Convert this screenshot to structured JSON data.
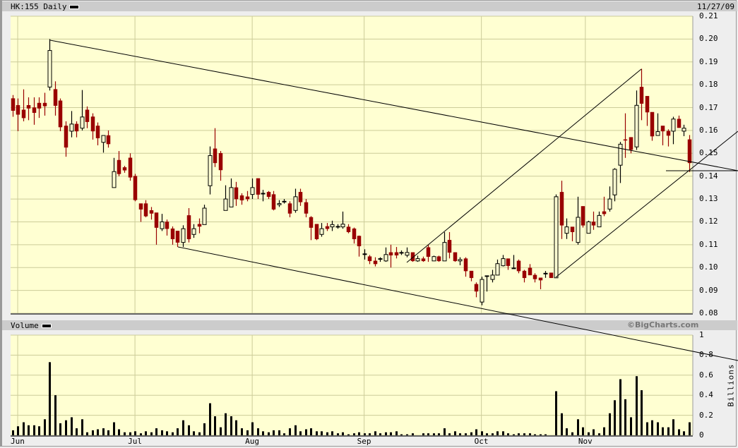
{
  "header": {
    "symbol_label": "HK:155 Daily",
    "date": "11/27/09"
  },
  "volume_header": {
    "label": "Volume",
    "credit": "©BigCharts.com"
  },
  "colors": {
    "plot_bg": "#ffffd2",
    "grid": "#cccc99",
    "down": "#990000",
    "up_fill": "#ffffd2",
    "line": "#000000"
  },
  "chart_data": [
    {
      "type": "candlestick",
      "title": "HK:155 Daily",
      "y_ticks": [
        "0.21",
        "0.20",
        "0.19",
        "0.18",
        "0.17",
        "0.16",
        "0.15",
        "0.14",
        "0.13",
        "0.12",
        "0.11",
        "0.10",
        "0.09",
        "0.08"
      ],
      "ylim": [
        0.08,
        0.21
      ],
      "x_ticks": [
        "Jun",
        "Jul",
        "Aug",
        "Sep",
        "Oct",
        "Nov"
      ],
      "grid": true,
      "ohlc": [
        [
          0.174,
          0.1755,
          0.166,
          0.1687
        ],
        [
          0.171,
          0.174,
          0.1597,
          0.167
        ],
        [
          0.169,
          0.178,
          0.164,
          0.1655
        ],
        [
          0.171,
          0.1745,
          0.1645,
          0.1697
        ],
        [
          0.17,
          0.1745,
          0.1625,
          0.1678
        ],
        [
          0.172,
          0.1745,
          0.1655,
          0.1697
        ],
        [
          0.172,
          0.1765,
          0.1665,
          0.1707
        ],
        [
          0.179,
          0.2,
          0.1775,
          0.195
        ],
        [
          0.178,
          0.1815,
          0.1665,
          0.1709
        ],
        [
          0.173,
          0.174,
          0.1597,
          0.1615
        ],
        [
          0.162,
          0.164,
          0.1485,
          0.1526
        ],
        [
          0.1597,
          0.1685,
          0.157,
          0.1628
        ],
        [
          0.1628,
          0.164,
          0.157,
          0.1597
        ],
        [
          0.161,
          0.1777,
          0.16,
          0.1659
        ],
        [
          0.169,
          0.1705,
          0.161,
          0.1638
        ],
        [
          0.166,
          0.1675,
          0.156,
          0.1597
        ],
        [
          0.162,
          0.1635,
          0.1535,
          0.1567
        ],
        [
          0.1548,
          0.1578,
          0.1503,
          0.1578
        ],
        [
          0.1578,
          0.16,
          0.1525,
          0.1541
        ],
        [
          0.135,
          0.148,
          0.135,
          0.142
        ],
        [
          0.147,
          0.151,
          0.14,
          0.141
        ],
        [
          0.1438,
          0.1445,
          0.1415,
          0.1426
        ],
        [
          0.148,
          0.15,
          0.138,
          0.1395
        ],
        [
          0.14,
          0.141,
          0.129,
          0.1296
        ],
        [
          0.128,
          0.128,
          0.12,
          0.1255
        ],
        [
          0.128,
          0.1295,
          0.122,
          0.1225
        ],
        [
          0.125,
          0.1265,
          0.121,
          0.1237
        ],
        [
          0.124,
          0.124,
          0.11,
          0.1175
        ],
        [
          0.117,
          0.1235,
          0.116,
          0.12
        ],
        [
          0.12,
          0.121,
          0.114,
          0.117
        ],
        [
          0.117,
          0.118,
          0.11,
          0.1125
        ],
        [
          0.116,
          0.116,
          0.109,
          0.111
        ],
        [
          0.111,
          0.1185,
          0.109,
          0.117
        ],
        [
          0.1228,
          0.126,
          0.111,
          0.1125
        ],
        [
          0.1145,
          0.119,
          0.113,
          0.117
        ],
        [
          0.119,
          0.1215,
          0.115,
          0.118
        ],
        [
          0.1188,
          0.1275,
          0.1188,
          0.126
        ],
        [
          0.1358,
          0.153,
          0.132,
          0.149
        ],
        [
          0.152,
          0.161,
          0.144,
          0.1458
        ],
        [
          0.15,
          0.151,
          0.138,
          0.1427
        ],
        [
          0.125,
          0.136,
          0.125,
          0.13
        ],
        [
          0.1265,
          0.139,
          0.1265,
          0.135
        ],
        [
          0.135,
          0.1375,
          0.127,
          0.13
        ],
        [
          0.1315,
          0.1325,
          0.1275,
          0.1295
        ],
        [
          0.131,
          0.1335,
          0.129,
          0.13
        ],
        [
          0.132,
          0.139,
          0.13,
          0.135
        ],
        [
          0.139,
          0.139,
          0.13,
          0.132
        ],
        [
          0.1325,
          0.134,
          0.129,
          0.1325
        ],
        [
          0.133,
          0.1335,
          0.13,
          0.131
        ],
        [
          0.132,
          0.1335,
          0.125,
          0.1255
        ],
        [
          0.1275,
          0.1295,
          0.1265,
          0.128
        ],
        [
          0.129,
          0.13,
          0.128,
          0.129
        ],
        [
          0.128,
          0.129,
          0.122,
          0.1237
        ],
        [
          0.125,
          0.1345,
          0.124,
          0.131
        ],
        [
          0.133,
          0.1345,
          0.127,
          0.1287
        ],
        [
          0.1285,
          0.13,
          0.122,
          0.1237
        ],
        [
          0.122,
          0.1225,
          0.112,
          0.1175
        ],
        [
          0.119,
          0.119,
          0.112,
          0.1125
        ],
        [
          0.1145,
          0.1195,
          0.1135,
          0.117
        ],
        [
          0.118,
          0.1195,
          0.116,
          0.117
        ],
        [
          0.1178,
          0.1205,
          0.116,
          0.1188
        ],
        [
          0.118,
          0.119,
          0.117,
          0.118
        ],
        [
          0.1178,
          0.1245,
          0.117,
          0.119
        ],
        [
          0.1178,
          0.119,
          0.115,
          0.1156
        ],
        [
          0.117,
          0.1175,
          0.1105,
          0.1125
        ],
        [
          0.1138,
          0.114,
          0.1048,
          0.1094
        ],
        [
          0.106,
          0.108,
          0.1035,
          0.106
        ],
        [
          0.1048,
          0.1055,
          0.1015,
          0.1029
        ],
        [
          0.1029,
          0.1045,
          0.1005,
          0.1016
        ],
        [
          0.1039,
          0.1045,
          0.1025,
          0.1039
        ],
        [
          0.1029,
          0.1088,
          0.1025,
          0.1057
        ],
        [
          0.1066,
          0.11,
          0.1,
          0.1054
        ],
        [
          0.1066,
          0.109,
          0.104,
          0.1054
        ],
        [
          0.1066,
          0.1075,
          0.1055,
          0.1066
        ],
        [
          0.1054,
          0.1088,
          0.1045,
          0.1066
        ],
        [
          0.1066,
          0.1066,
          0.1025,
          0.1029
        ],
        [
          0.1029,
          0.1052,
          0.1025,
          0.1039
        ],
        [
          0.1039,
          0.1048,
          0.1025,
          0.1029
        ],
        [
          0.1088,
          0.11,
          0.1025,
          0.1048
        ],
        [
          0.1029,
          0.1052,
          0.1029,
          0.1048
        ],
        [
          0.1048,
          0.1052,
          0.1025,
          0.1029
        ],
        [
          0.1029,
          0.1155,
          0.1029,
          0.111
        ],
        [
          0.112,
          0.1155,
          0.104,
          0.1066
        ],
        [
          0.1066,
          0.1066,
          0.1025,
          0.1029
        ],
        [
          0.1029,
          0.1045,
          0.101,
          0.1035
        ],
        [
          0.1039,
          0.1045,
          0.096,
          0.0985
        ],
        [
          0.0985,
          0.0985,
          0.094,
          0.0955
        ],
        [
          0.0927,
          0.0935,
          0.087,
          0.0896
        ],
        [
          0.0849,
          0.096,
          0.0835,
          0.0948
        ],
        [
          0.0964,
          0.0964,
          0.0895,
          0.0964
        ],
        [
          0.0948,
          0.099,
          0.0935,
          0.0967
        ],
        [
          0.0967,
          0.1035,
          0.0967,
          0.1017
        ],
        [
          0.1008,
          0.1055,
          0.1005,
          0.1039
        ],
        [
          0.1039,
          0.1039,
          0.099,
          0.1008
        ],
        [
          0.0998,
          0.1055,
          0.0995,
          0.0998
        ],
        [
          0.1029,
          0.1035,
          0.0975,
          0.0985
        ],
        [
          0.0985,
          0.099,
          0.0935,
          0.0955
        ],
        [
          0.0998,
          0.1015,
          0.0975,
          0.0967
        ],
        [
          0.0967,
          0.0975,
          0.0935,
          0.095
        ],
        [
          0.0955,
          0.0955,
          0.0905,
          0.0945
        ],
        [
          0.0975,
          0.0985,
          0.0955,
          0.0975
        ],
        [
          0.0977,
          0.0977,
          0.0955,
          0.0955
        ],
        [
          0.0955,
          0.132,
          0.0955,
          0.131
        ],
        [
          0.133,
          0.138,
          0.1125,
          0.1185
        ],
        [
          0.115,
          0.1215,
          0.1125,
          0.1178
        ],
        [
          0.1178,
          0.1178,
          0.1115,
          0.1156
        ],
        [
          0.111,
          0.131,
          0.11,
          0.122
        ],
        [
          0.1268,
          0.1268,
          0.1175,
          0.1185
        ],
        [
          0.115,
          0.1205,
          0.115,
          0.12
        ],
        [
          0.12,
          0.1245,
          0.1165,
          0.1185
        ],
        [
          0.1178,
          0.1245,
          0.1178,
          0.1228
        ],
        [
          0.1245,
          0.131,
          0.1225,
          0.1235
        ],
        [
          0.1256,
          0.1355,
          0.1245,
          0.13
        ],
        [
          0.1318,
          0.1435,
          0.129,
          0.143
        ],
        [
          0.1448,
          0.155,
          0.137,
          0.154
        ],
        [
          0.156,
          0.1675,
          0.148,
          0.1557
        ],
        [
          0.157,
          0.157,
          0.15,
          0.1516
        ],
        [
          0.1528,
          0.1775,
          0.1515,
          0.171
        ],
        [
          0.179,
          0.187,
          0.1645,
          0.1718
        ],
        [
          0.175,
          0.175,
          0.162,
          0.168
        ],
        [
          0.168,
          0.168,
          0.1555,
          0.1575
        ],
        [
          0.1578,
          0.1675,
          0.1578,
          0.1595
        ],
        [
          0.162,
          0.162,
          0.1535,
          0.1597
        ],
        [
          0.1597,
          0.1605,
          0.153,
          0.1578
        ],
        [
          0.1597,
          0.166,
          0.154,
          0.165
        ],
        [
          0.165,
          0.1665,
          0.162,
          0.1612
        ],
        [
          0.1597,
          0.1625,
          0.1575,
          0.161
        ],
        [
          0.156,
          0.158,
          0.1418,
          0.1458
        ]
      ]
    },
    {
      "type": "bar",
      "title": "Volume",
      "ylabel": "Billions",
      "ylim": [
        0,
        1
      ],
      "y_ticks": [
        "1",
        "0.8",
        "0.6",
        "0.4",
        "0.2",
        "0"
      ],
      "x_ticks": [
        "Jun",
        "Jul",
        "Aug",
        "Sep",
        "Oct",
        "Nov"
      ],
      "values": [
        0.05,
        0.09,
        0.13,
        0.1,
        0.1,
        0.09,
        0.16,
        0.73,
        0.4,
        0.12,
        0.15,
        0.18,
        0.07,
        0.16,
        0.03,
        0.05,
        0.06,
        0.07,
        0.05,
        0.13,
        0.06,
        0.03,
        0.03,
        0.04,
        0.02,
        0.04,
        0.03,
        0.07,
        0.05,
        0.04,
        0.03,
        0.07,
        0.15,
        0.1,
        0.04,
        0.03,
        0.12,
        0.32,
        0.19,
        0.08,
        0.22,
        0.19,
        0.15,
        0.07,
        0.05,
        0.13,
        0.07,
        0.04,
        0.03,
        0.05,
        0.05,
        0.02,
        0.07,
        0.1,
        0.04,
        0.06,
        0.07,
        0.04,
        0.04,
        0.03,
        0.04,
        0.02,
        0.03,
        0.01,
        0.02,
        0.03,
        0.02,
        0.02,
        0.04,
        0.02,
        0.03,
        0.03,
        0.04,
        0.01,
        0.01,
        0.02,
        0,
        0.02,
        0.02,
        0.02,
        0.02,
        0.07,
        0.02,
        0.04,
        0.02,
        0.02,
        0.03,
        0.06,
        0.04,
        0.02,
        0.02,
        0.04,
        0.04,
        0.02,
        0.01,
        0.02,
        0.02,
        0.02,
        0.01,
        0.01,
        0.01,
        0,
        0.44,
        0.22,
        0.07,
        0.03,
        0.16,
        0.08,
        0.03,
        0.06,
        0.02,
        0.08,
        0.22,
        0.35,
        0.56,
        0.36,
        0.18,
        0.59,
        0.45,
        0.13,
        0.15,
        0.13,
        0.08,
        0.08,
        0.16,
        0.06,
        0.04,
        0.13
      ]
    }
  ]
}
